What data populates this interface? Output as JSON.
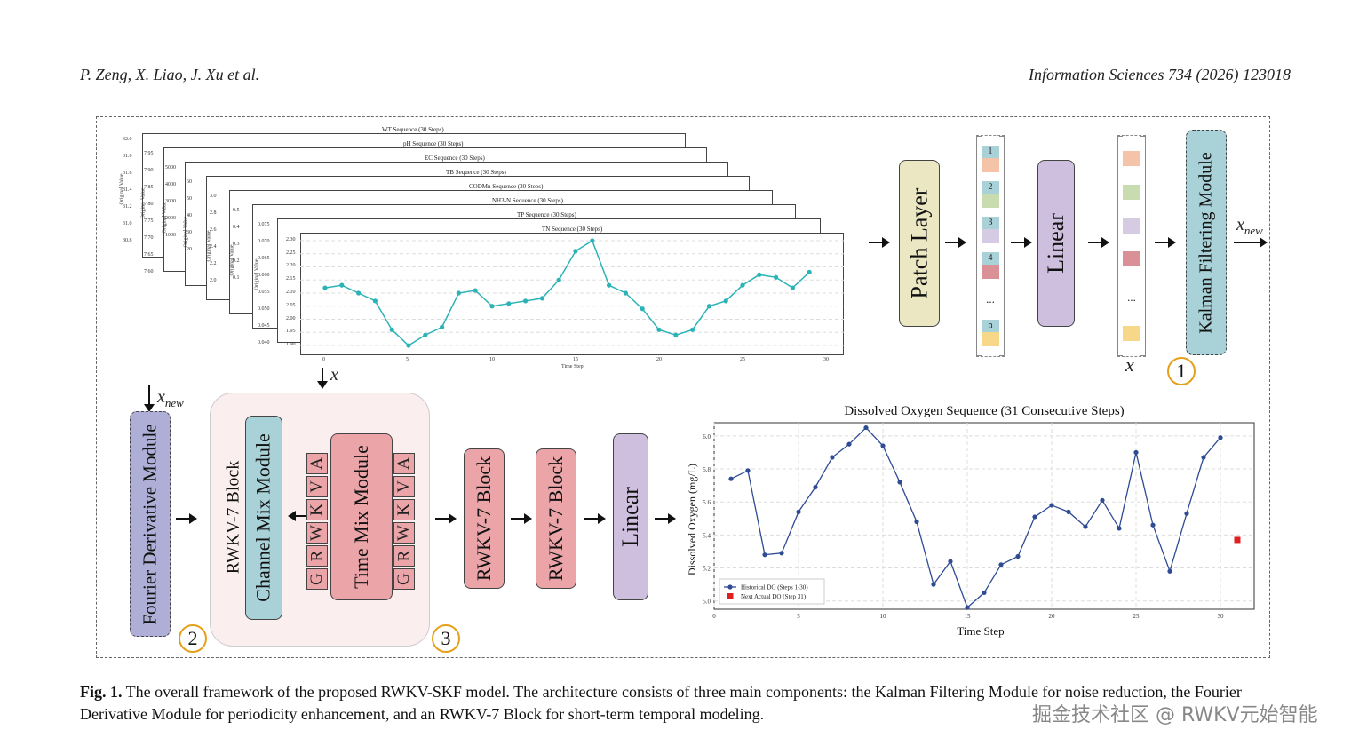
{
  "header": {
    "authors": "P. Zeng, X. Liao, J. Xu et al.",
    "journal": "Information Sciences 734 (2026) 123018"
  },
  "stack": {
    "titles": [
      "WT Sequence (30 Steps)",
      "pH Sequence (30 Steps)",
      "EC Sequence (30 Steps)",
      "TB Sequence (30 Steps)",
      "CODMn Sequence (30 Steps)",
      "NH3-N Sequence (30 Steps)",
      "TP Sequence (30 Steps)",
      "TN Sequence (30 Steps)"
    ],
    "ylabel": "Original Value",
    "xlabel": "Time Step",
    "front_y": [
      2.12,
      2.13,
      2.1,
      2.07,
      1.96,
      1.9,
      1.94,
      1.97,
      2.1,
      2.11,
      2.05,
      2.06,
      2.07,
      2.08,
      2.15,
      2.26,
      2.3,
      2.13,
      2.1,
      2.04,
      1.96,
      1.94,
      1.96,
      2.05,
      2.07,
      2.13,
      2.17,
      2.16,
      2.12,
      2.18
    ],
    "front_yticks": [
      "2.30",
      "2.25",
      "2.20",
      "2.15",
      "2.10",
      "2.05",
      "2.00",
      "1.95",
      "1.90"
    ],
    "front_xticks": [
      "0",
      "5",
      "10",
      "15",
      "20",
      "25",
      "30"
    ],
    "back_yticks": [
      [
        "32.0",
        "31.8",
        "31.6",
        "31.4",
        "31.2",
        "31.0",
        "30.8"
      ],
      [
        "7.95",
        "7.90",
        "7.85",
        "7.80",
        "7.75",
        "7.70",
        "7.65",
        "7.60"
      ],
      [
        "5000",
        "4000",
        "3000",
        "2000",
        "1000"
      ],
      [
        "60",
        "50",
        "40",
        "30",
        "20"
      ],
      [
        "3.0",
        "2.8",
        "2.6",
        "2.4",
        "2.2",
        "2.0"
      ],
      [
        "0.5",
        "0.4",
        "0.3",
        "0.2",
        "0.1"
      ],
      [
        "0.075",
        "0.070",
        "0.065",
        "0.060",
        "0.055",
        "0.050",
        "0.045",
        "0.040"
      ]
    ]
  },
  "top_pipeline": {
    "patch_layer": "Patch Layer",
    "linear": "Linear",
    "kalman": "Kalman Filtering Module",
    "patch_labels": [
      "1",
      "2",
      "3",
      "4",
      "...",
      "n"
    ],
    "ellipsis": "...",
    "x_label": "x",
    "x_new_label": "x",
    "x_new_sub": "new",
    "circle1": "1",
    "colors": {
      "patch_layer": "#ebe7c3",
      "linear": "#cdbfdd",
      "kalman": "#a9d2d8",
      "c_orange": "#f4c3a8",
      "c_green": "#c8dcb0",
      "c_lilac": "#d5cbe3",
      "c_red": "#d99096",
      "c_yellow": "#f7d889",
      "c_teal": "#a9d2d8"
    }
  },
  "bottom_pipeline": {
    "fourier": "Fourier Derivative Module",
    "rwkv_block": "RWKV-7 Block",
    "channel_mix": "Channel Mix Module",
    "time_mix": "Time Mix Module",
    "left_letters": [
      "G",
      "R",
      "W",
      "K",
      "V",
      "A"
    ],
    "right_letters": [
      "G",
      "R",
      "W",
      "K",
      "V",
      "A"
    ],
    "rwkv_block_2": "RWKV-7 Block",
    "rwkv_block_3": "RWKV-7 Block",
    "linear": "Linear",
    "x_new": "x",
    "x_new_sub": "new",
    "x_in": "x",
    "circle2": "2",
    "circle3": "3",
    "colors": {
      "fourier": "#aeaed6",
      "container": "#fbeeee",
      "channel_mix": "#a9d2d8",
      "time_mix": "#eba5a9",
      "rwkv": "#eba5a9",
      "linear": "#cdbfdd"
    }
  },
  "chart_data": {
    "type": "line",
    "title": "Dissolved Oxygen Sequence (31 Consecutive Steps)",
    "xlabel": "Time Step",
    "ylabel": "Dissolved Oxygen (mg/L)",
    "xlim": [
      0,
      32
    ],
    "ylim": [
      4.95,
      6.08
    ],
    "xticks": [
      0,
      5,
      10,
      15,
      20,
      25,
      30
    ],
    "yticks": [
      5.0,
      5.2,
      5.4,
      5.6,
      5.8,
      6.0
    ],
    "ytick_labels": [
      "5.0",
      "5.2",
      "5.4",
      "5.6",
      "5.8",
      "6.0"
    ],
    "grid": true,
    "legend_position": "bottom-left",
    "series": [
      {
        "name": "Historical DO (Steps 1-30)",
        "color": "#2f4b93",
        "x": [
          1,
          2,
          3,
          4,
          5,
          6,
          7,
          8,
          9,
          10,
          11,
          12,
          13,
          14,
          15,
          16,
          17,
          18,
          19,
          20,
          21,
          22,
          23,
          24,
          25,
          26,
          27,
          28,
          29,
          30
        ],
        "values": [
          5.74,
          5.79,
          5.28,
          5.29,
          5.54,
          5.69,
          5.87,
          5.95,
          6.05,
          5.94,
          5.72,
          5.48,
          5.1,
          5.24,
          4.96,
          5.05,
          5.22,
          5.27,
          5.51,
          5.58,
          5.54,
          5.45,
          5.61,
          5.44,
          5.9,
          5.46,
          5.18,
          5.53,
          5.87,
          5.99
        ]
      },
      {
        "name": "Next Actual DO (Step 31)",
        "color": "#e02020",
        "x": [
          31
        ],
        "values": [
          5.37
        ]
      }
    ]
  },
  "caption": {
    "label": "Fig. 1.",
    "text": " The overall framework of the proposed RWKV-SKF model. The architecture consists of three main components: the Kalman Filtering Module for noise reduction, the Fourier Derivative Module for periodicity enhancement, and an RWKV-7 Block for short-term temporal modeling."
  },
  "watermark": "掘金技术社区 @ RWKV元始智能"
}
